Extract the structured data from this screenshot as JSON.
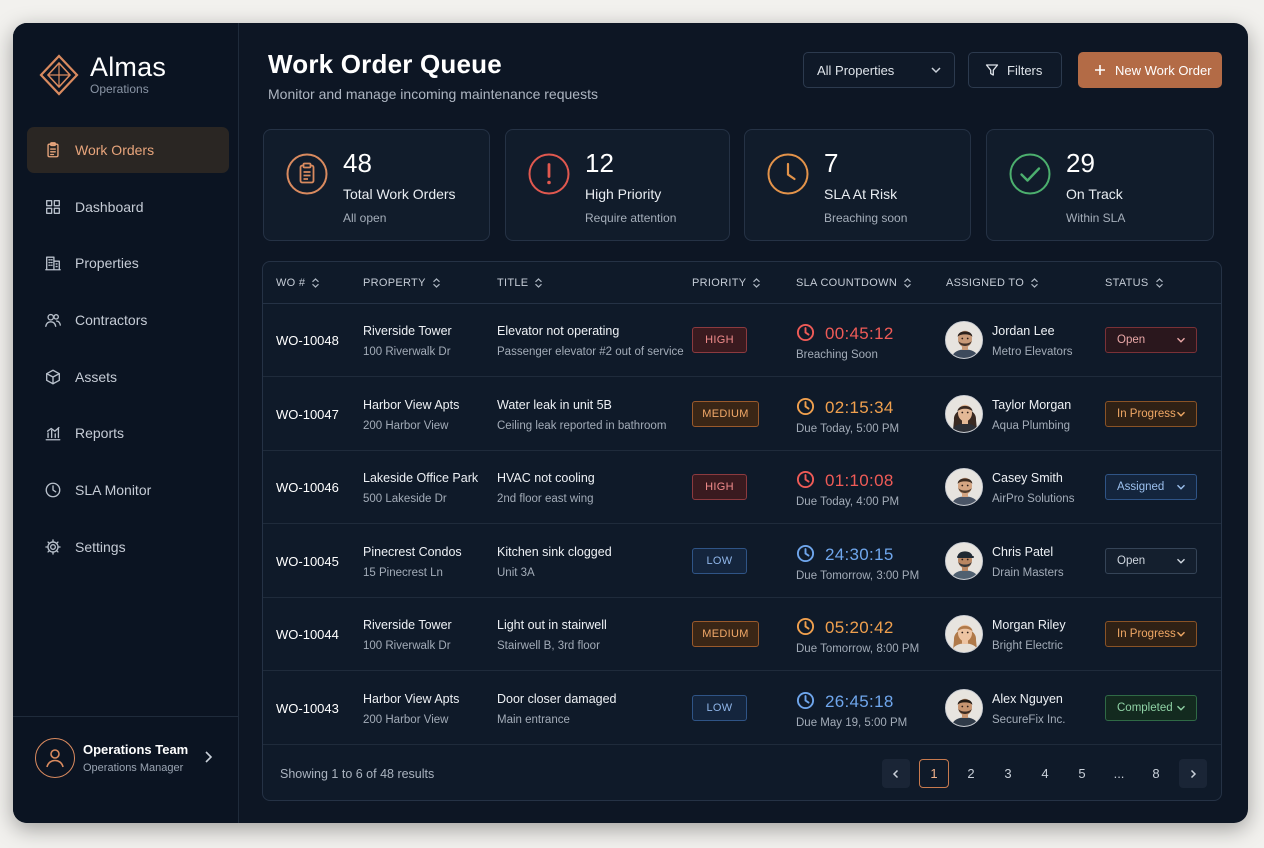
{
  "brand": {
    "name": "Almas",
    "sub": "Operations",
    "accent": "#d98a5f"
  },
  "nav": [
    {
      "label": "Work Orders",
      "icon": "clipboard-icon",
      "active": true
    },
    {
      "label": "Dashboard",
      "icon": "grid-icon"
    },
    {
      "label": "Properties",
      "icon": "building-icon"
    },
    {
      "label": "Contractors",
      "icon": "users-icon"
    },
    {
      "label": "Assets",
      "icon": "cube-icon"
    },
    {
      "label": "Reports",
      "icon": "bar-chart-icon"
    },
    {
      "label": "SLA Monitor",
      "icon": "clock-icon"
    },
    {
      "label": "Settings",
      "icon": "gear-icon"
    }
  ],
  "user": {
    "team": "Operations Team",
    "role": "Operations Manager"
  },
  "header": {
    "title": "Work Order Queue",
    "subtitle": "Monitor and manage incoming maintenance requests",
    "property_select": "All Properties",
    "filters_label": "Filters",
    "new_label": "New Work Order"
  },
  "cards": [
    {
      "value": "48",
      "label": "Total Work Orders",
      "sub": "All open",
      "icon": "clipboard-icon",
      "color": "#d98a5f"
    },
    {
      "value": "12",
      "label": "High Priority",
      "sub": "Require attention",
      "icon": "alert-circle-icon",
      "color": "#e0584f"
    },
    {
      "value": "7",
      "label": "SLA At Risk",
      "sub": "Breaching soon",
      "icon": "clock-icon",
      "color": "#e3934a"
    },
    {
      "value": "29",
      "label": "On Track",
      "sub": "Within SLA",
      "icon": "check-circle-icon",
      "color": "#4caf6e"
    }
  ],
  "columns": [
    "WO #",
    "PROPERTY",
    "TITLE",
    "PRIORITY",
    "SLA COUNTDOWN",
    "ASSIGNED TO",
    "STATUS"
  ],
  "rows": [
    {
      "wo": "WO-10048",
      "property": "Riverside Tower",
      "address": "100 Riverwalk Dr",
      "title": "Elevator not operating",
      "desc": "Passenger elevator #2 out of service",
      "priority": "HIGH",
      "countdown": "00:45:12",
      "due": "Breaching Soon",
      "sla_color": "#ef5b57",
      "assignee": "Jordan Lee",
      "company": "Metro Elevators",
      "status": "Open"
    },
    {
      "wo": "WO-10047",
      "property": "Harbor View Apts",
      "address": "200 Harbor View",
      "title": "Water leak in unit 5B",
      "desc": "Ceiling leak reported in bathroom",
      "priority": "MEDIUM",
      "countdown": "02:15:34",
      "due": "Due Today, 5:00 PM",
      "sla_color": "#f0a04e",
      "assignee": "Taylor Morgan",
      "company": "Aqua Plumbing",
      "status": "In Progress"
    },
    {
      "wo": "WO-10046",
      "property": "Lakeside Office Park",
      "address": "500 Lakeside Dr",
      "title": "HVAC not cooling",
      "desc": "2nd floor east wing",
      "priority": "HIGH",
      "countdown": "01:10:08",
      "due": "Due Today, 4:00 PM",
      "sla_color": "#ef5b57",
      "assignee": "Casey Smith",
      "company": "AirPro Solutions",
      "status": "Assigned"
    },
    {
      "wo": "WO-10045",
      "property": "Pinecrest Condos",
      "address": "15 Pinecrest Ln",
      "title": "Kitchen sink clogged",
      "desc": "Unit 3A",
      "priority": "LOW",
      "countdown": "24:30:15",
      "due": "Due Tomorrow, 3:00 PM",
      "sla_color": "#6fa6ec",
      "assignee": "Chris Patel",
      "company": "Drain Masters",
      "status": "Open"
    },
    {
      "wo": "WO-10044",
      "property": "Riverside Tower",
      "address": "100 Riverwalk Dr",
      "title": "Light out in stairwell",
      "desc": "Stairwell B, 3rd floor",
      "priority": "MEDIUM",
      "countdown": "05:20:42",
      "due": "Due Tomorrow, 8:00 PM",
      "sla_color": "#f0a04e",
      "assignee": "Morgan Riley",
      "company": "Bright Electric",
      "status": "In Progress"
    },
    {
      "wo": "WO-10043",
      "property": "Harbor View Apts",
      "address": "200 Harbor View",
      "title": "Door closer damaged",
      "desc": "Main entrance",
      "priority": "LOW",
      "countdown": "26:45:18",
      "due": "Due May 19, 5:00 PM",
      "sla_color": "#6fa6ec",
      "assignee": "Alex Nguyen",
      "company": "SecureFix Inc.",
      "status": "Completed"
    }
  ],
  "footer": {
    "showing": "Showing 1 to 6 of 48 results",
    "pages": [
      "1",
      "2",
      "3",
      "4",
      "5",
      "...",
      "8"
    ],
    "current": "1"
  }
}
